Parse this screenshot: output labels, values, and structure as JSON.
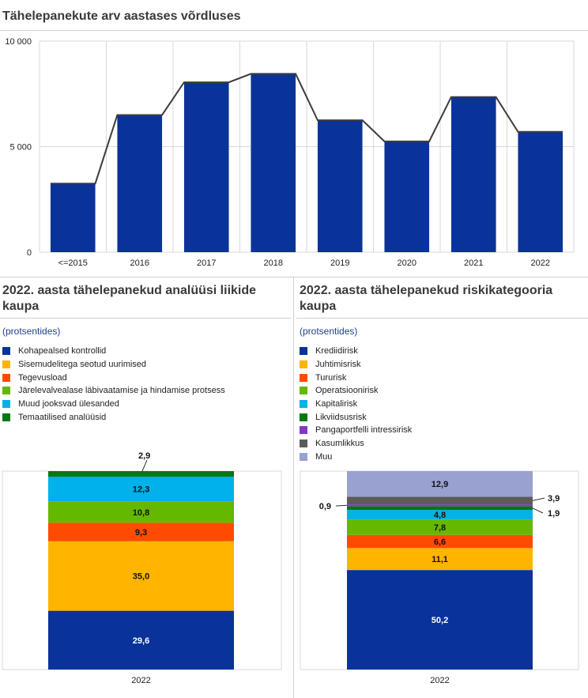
{
  "colors": {
    "bar": "#0a3399",
    "trend_line": "#3c3c3c",
    "grid": "#d9d9d9"
  },
  "top": {
    "title": "Tähelepanekute arv aastases võrdluses"
  },
  "left": {
    "title": "2022. aasta tähelepanekud analüüsi liikide kaupa",
    "subtitle": "(protsentides)",
    "legend": [
      {
        "label": "Kohapealsed kontrollid",
        "color": "#0a3399"
      },
      {
        "label": "Sisemudelitega seotud uurimised",
        "color": "#ffb400"
      },
      {
        "label": "Tegevusload",
        "color": "#ff4b00"
      },
      {
        "label": "Järelevalvealase läbivaatamise ja hindamise protsess",
        "color": "#65b800"
      },
      {
        "label": "Muud jooksvad ülesanded",
        "color": "#00b1ea"
      },
      {
        "label": "Temaatilised analüüsid",
        "color": "#007816"
      }
    ]
  },
  "right": {
    "title": "2022. aasta tähelepanekud riskikategooria kaupa",
    "subtitle": "(protsentides)",
    "legend": [
      {
        "label": "Krediidirisk",
        "color": "#0a3399"
      },
      {
        "label": "Juhtimisrisk",
        "color": "#ffb400"
      },
      {
        "label": "Tururisk",
        "color": "#ff4b00"
      },
      {
        "label": "Operatsioonirisk",
        "color": "#65b800"
      },
      {
        "label": "Kapitalirisk",
        "color": "#00b1ea"
      },
      {
        "label": "Likviidsusrisk",
        "color": "#007816"
      },
      {
        "label": "Pangaportfelli intressirisk",
        "color": "#8139c6"
      },
      {
        "label": "Kasumlikkus",
        "color": "#5c5c5c"
      },
      {
        "label": "Muu",
        "color": "#98a1d0"
      }
    ]
  },
  "chart_data": [
    {
      "type": "bar",
      "title": "Tähelepanekute arv aastases võrdluses",
      "categories": [
        "<=2015",
        "2016",
        "2017",
        "2018",
        "2019",
        "2020",
        "2021",
        "2022"
      ],
      "values": [
        3250,
        6500,
        8050,
        8450,
        6250,
        5250,
        7350,
        5700
      ],
      "yticks": [
        "0",
        "5 000",
        "10 000"
      ],
      "ylim": [
        0,
        10000
      ],
      "xlabel": "",
      "ylabel": "",
      "grid": true,
      "line_overlay": true
    },
    {
      "type": "bar",
      "stacked": true,
      "unit": "percent",
      "categories": [
        "2022"
      ],
      "series": [
        {
          "name": "Kohapealsed kontrollid",
          "values": [
            29.6
          ],
          "label": "29,6"
        },
        {
          "name": "Sisemudelitega seotud uurimised",
          "values": [
            35.0
          ],
          "label": "35,0"
        },
        {
          "name": "Tegevusload",
          "values": [
            9.3
          ],
          "label": "9,3"
        },
        {
          "name": "Järelevalvealase läbivaatamise ja hindamise protsess",
          "values": [
            10.8
          ],
          "label": "10,8"
        },
        {
          "name": "Muud jooksvad ülesanded",
          "values": [
            12.3
          ],
          "label": "12,3"
        },
        {
          "name": "Temaatilised analüüsid",
          "values": [
            2.9
          ],
          "label": "2,9"
        }
      ]
    },
    {
      "type": "bar",
      "stacked": true,
      "unit": "percent",
      "categories": [
        "2022"
      ],
      "series": [
        {
          "name": "Krediidirisk",
          "values": [
            50.2
          ],
          "label": "50,2"
        },
        {
          "name": "Juhtimisrisk",
          "values": [
            11.1
          ],
          "label": "11,1"
        },
        {
          "name": "Tururisk",
          "values": [
            6.6
          ],
          "label": "6,6"
        },
        {
          "name": "Operatsioonirisk",
          "values": [
            7.8
          ],
          "label": "7,8"
        },
        {
          "name": "Kapitalirisk",
          "values": [
            4.8
          ],
          "label": "4,8"
        },
        {
          "name": "Likviidsusrisk",
          "values": [
            1.9
          ],
          "label": "1,9"
        },
        {
          "name": "Pangaportfelli intressirisk",
          "values": [
            0.9
          ],
          "label": "0,9"
        },
        {
          "name": "Kasumlikkus",
          "values": [
            3.9
          ],
          "label": "3,9"
        },
        {
          "name": "Muu",
          "values": [
            12.9
          ],
          "label": "12,9"
        }
      ]
    }
  ]
}
